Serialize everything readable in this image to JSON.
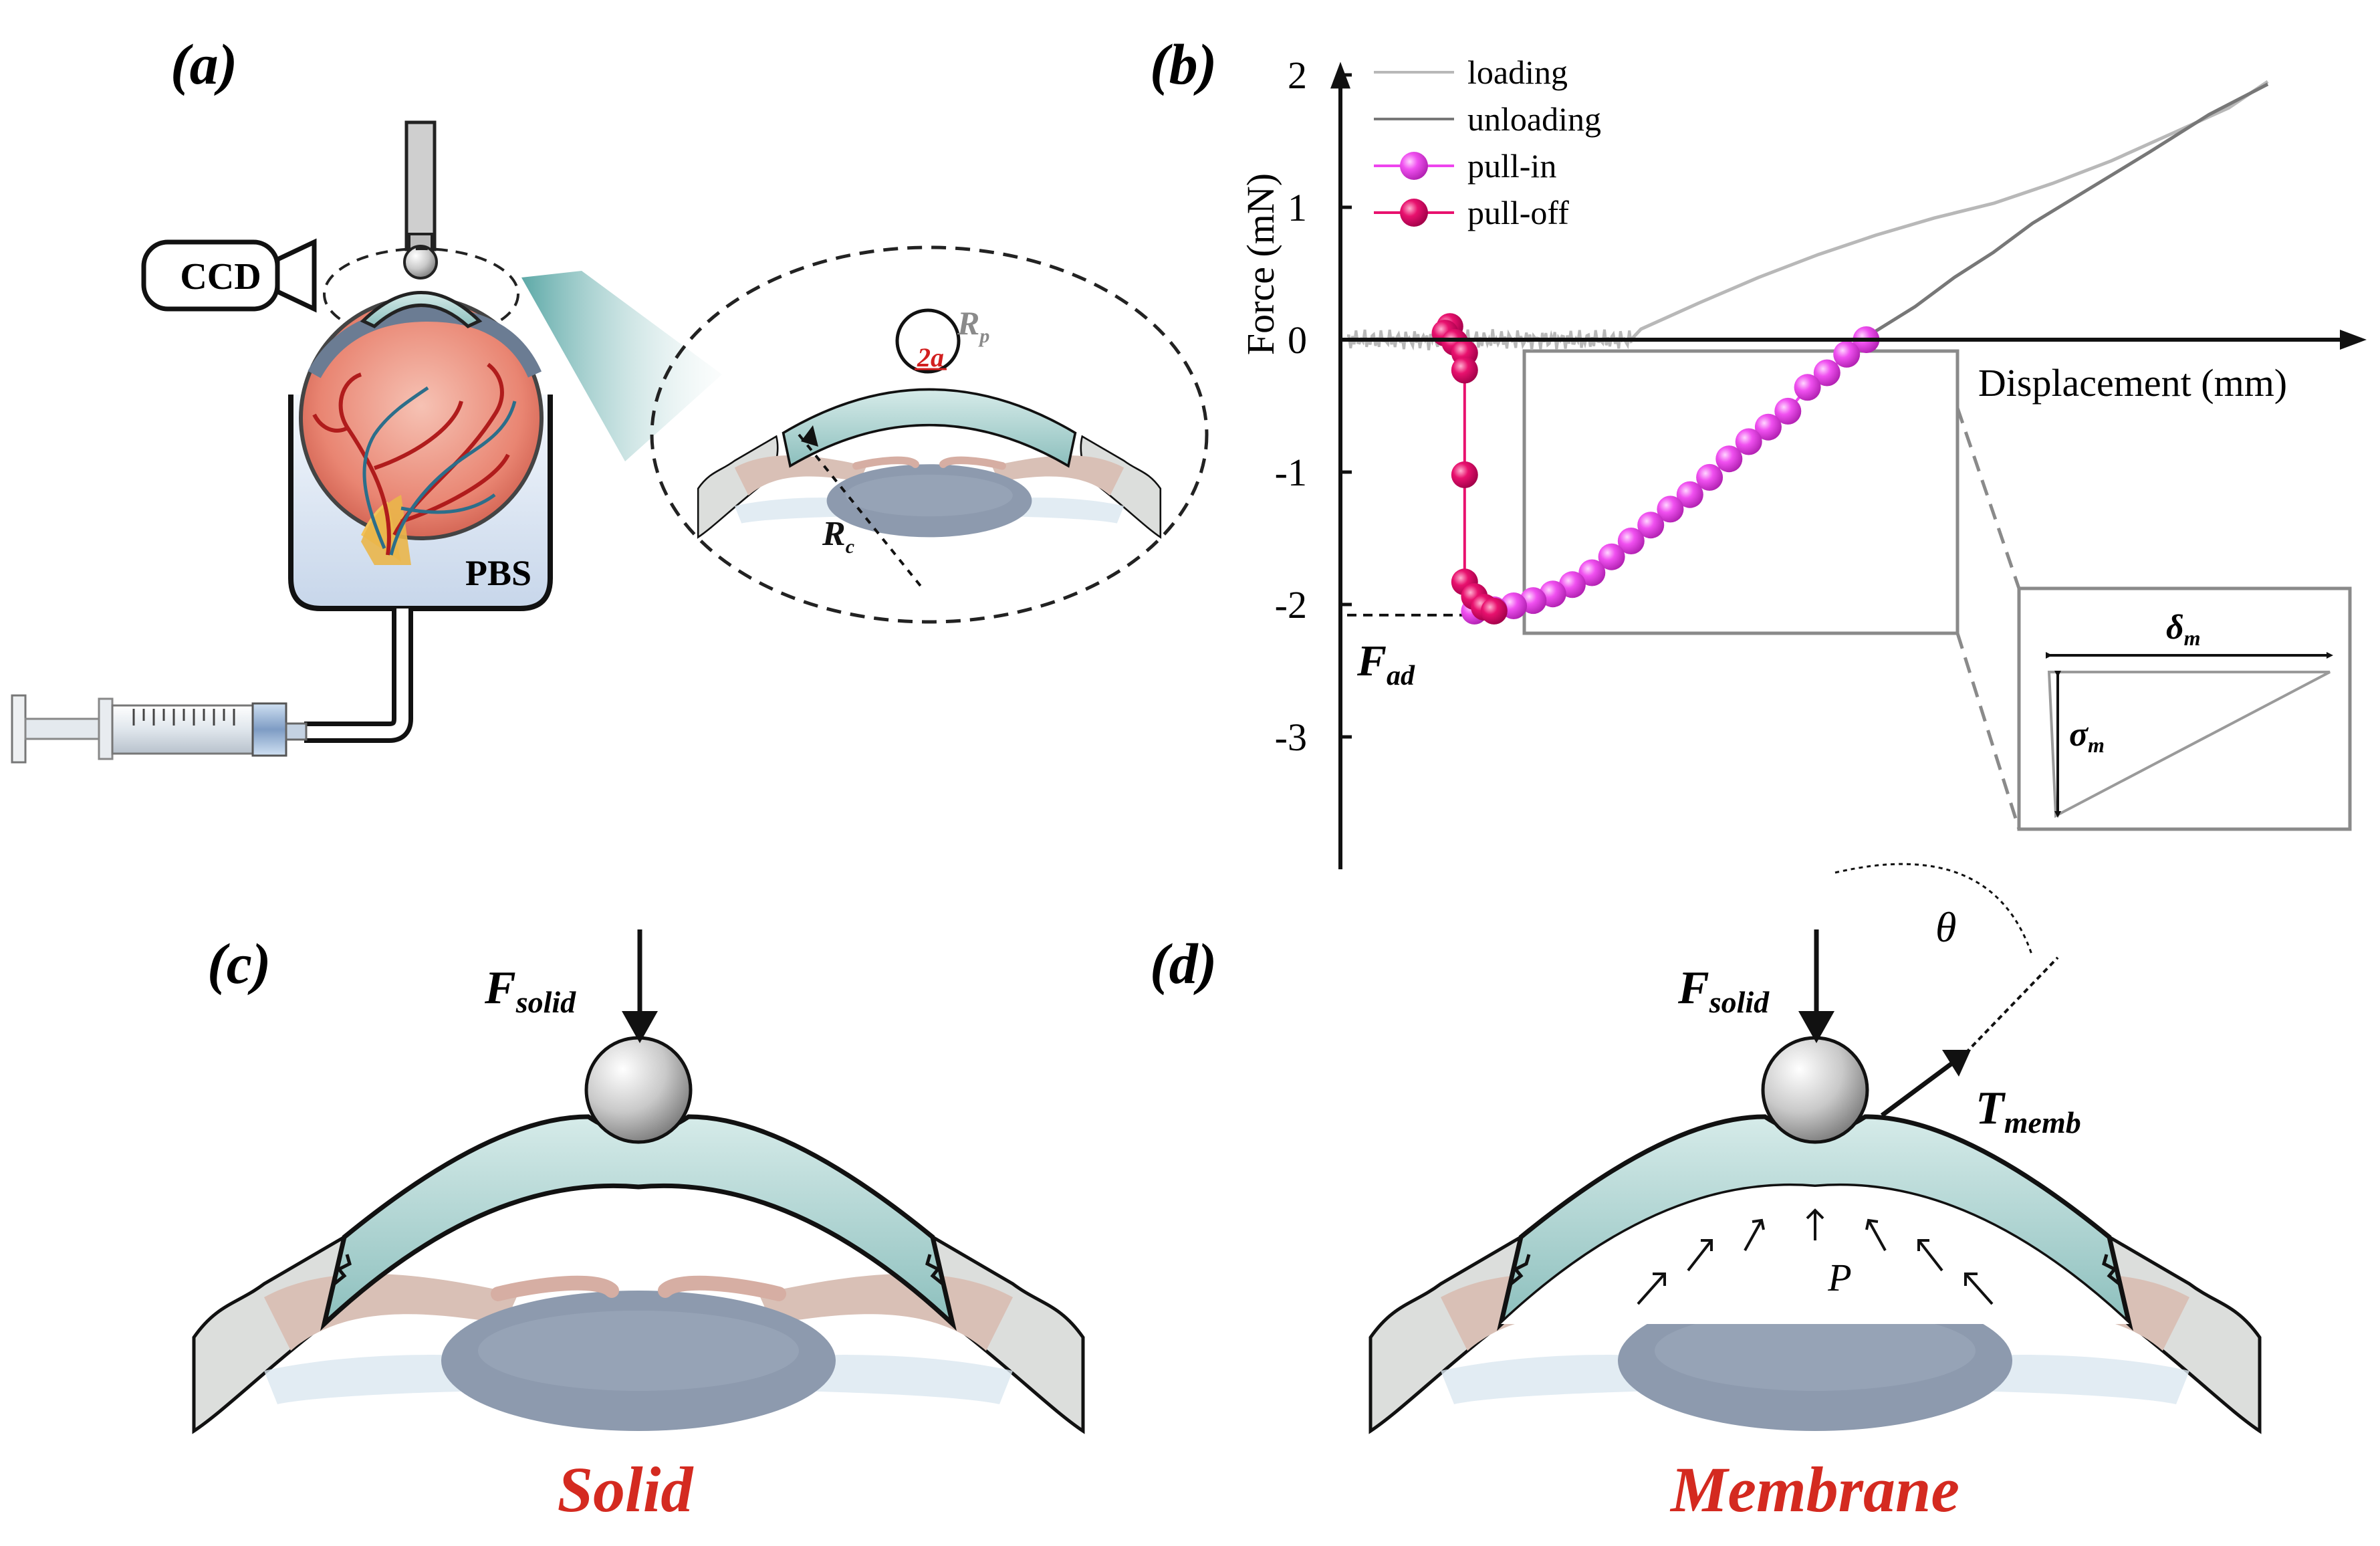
{
  "panels": {
    "a": {
      "label": "(a)",
      "ccd": "CCD",
      "pbs": "PBS",
      "rp": "R",
      "rp_sub": "p",
      "contact": "2a",
      "rc": "R",
      "rc_sub": "c"
    },
    "b": {
      "label": "(b)"
    },
    "c": {
      "label": "(c)",
      "force": "F",
      "force_sub": "solid",
      "caption": "Solid"
    },
    "d": {
      "label": "(d)",
      "force": "F",
      "force_sub": "solid",
      "tension": "T",
      "tension_sub": "memb",
      "theta": "θ",
      "pressure": "P",
      "caption": "Membrane"
    }
  },
  "chart_data": {
    "type": "line",
    "xlabel": "Displacement (mm)",
    "ylabel": "Force (mN)",
    "ylim": [
      -4,
      2.2
    ],
    "yticks": [
      2,
      1,
      0,
      -1,
      -2,
      -3
    ],
    "ytick_labels": [
      "2",
      "1",
      "0",
      "-1",
      "-2",
      "-3"
    ],
    "legend": [
      "loading",
      "unloading",
      "pull-in",
      "pull-off"
    ],
    "legend_position": "top-left",
    "adhesion_label": "F",
    "adhesion_sub": "ad",
    "adhesion_force": -2.08,
    "inset": {
      "delta": "δ",
      "delta_sub": "m",
      "sigma": "σ",
      "sigma_sub": "m"
    },
    "series": [
      {
        "name": "loading",
        "color": "#b8b8b8",
        "points": [
          [
            0.0,
            0.0
          ],
          [
            0.29,
            0.0
          ],
          [
            0.3,
            0.08
          ],
          [
            0.36,
            0.28
          ],
          [
            0.42,
            0.47
          ],
          [
            0.48,
            0.64
          ],
          [
            0.54,
            0.79
          ],
          [
            0.6,
            0.92
          ],
          [
            0.66,
            1.03
          ],
          [
            0.72,
            1.18
          ],
          [
            0.78,
            1.35
          ],
          [
            0.84,
            1.55
          ],
          [
            0.9,
            1.75
          ],
          [
            0.94,
            1.95
          ]
        ]
      },
      {
        "name": "unloading",
        "color": "#777777",
        "points": [
          [
            0.94,
            1.93
          ],
          [
            0.88,
            1.7
          ],
          [
            0.82,
            1.42
          ],
          [
            0.76,
            1.15
          ],
          [
            0.7,
            0.88
          ],
          [
            0.66,
            0.66
          ],
          [
            0.62,
            0.47
          ],
          [
            0.58,
            0.25
          ],
          [
            0.53,
            0.02
          ]
        ]
      },
      {
        "name": "pull-in",
        "color": "#ee44ee",
        "points": [
          [
            0.53,
            0.0
          ],
          [
            0.51,
            -0.11
          ],
          [
            0.49,
            -0.25
          ],
          [
            0.47,
            -0.36
          ],
          [
            0.45,
            -0.54
          ],
          [
            0.43,
            -0.66
          ],
          [
            0.41,
            -0.77
          ],
          [
            0.39,
            -0.9
          ],
          [
            0.37,
            -1.04
          ],
          [
            0.35,
            -1.17
          ],
          [
            0.33,
            -1.28
          ],
          [
            0.31,
            -1.4
          ],
          [
            0.29,
            -1.52
          ],
          [
            0.27,
            -1.64
          ],
          [
            0.25,
            -1.76
          ],
          [
            0.23,
            -1.85
          ],
          [
            0.21,
            -1.92
          ],
          [
            0.19,
            -1.97
          ],
          [
            0.17,
            -2.01
          ],
          [
            0.15,
            -2.04
          ],
          [
            0.13,
            -2.05
          ]
        ]
      },
      {
        "name": "pull-off",
        "color": "#e8116e",
        "points": [
          [
            0.105,
            0.1
          ],
          [
            0.1,
            0.05
          ],
          [
            0.11,
            -0.02
          ],
          [
            0.12,
            -0.1
          ],
          [
            0.12,
            -0.23
          ],
          [
            0.12,
            -1.02
          ],
          [
            0.12,
            -1.83
          ],
          [
            0.13,
            -1.94
          ],
          [
            0.14,
            -2.02
          ],
          [
            0.15,
            -2.05
          ]
        ]
      }
    ]
  }
}
